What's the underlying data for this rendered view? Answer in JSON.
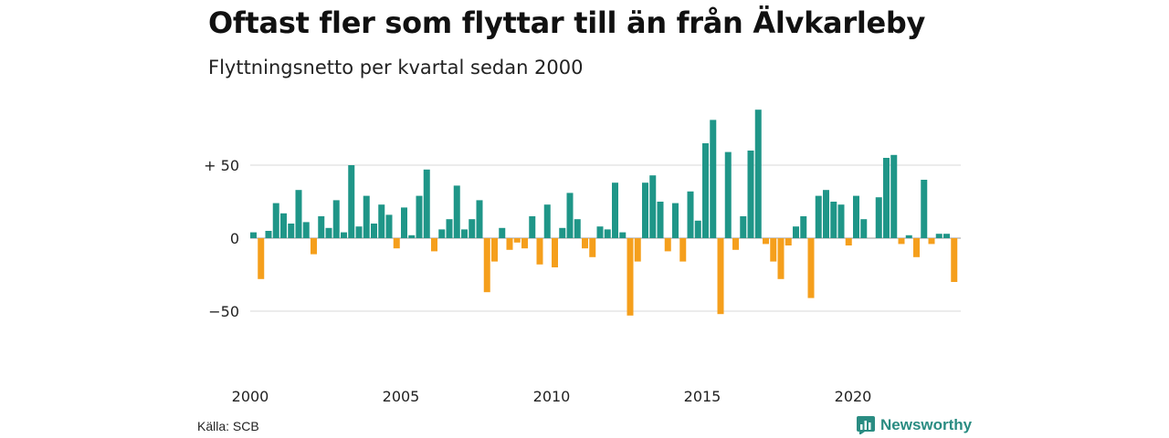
{
  "title": "Oftast fler som flyttar till än från Älvkarleby",
  "subtitle": "Flyttningsnetto per kvartal sedan 2000",
  "source": "Källa: SCB",
  "brand": "Newsworthy",
  "logo_icon": "newsworthy-chart-icon",
  "colors": {
    "positive": "#1f9688",
    "negative": "#f59f1c",
    "grid": "#d9d9d9",
    "brand": "#2a8c82"
  },
  "chart_data": {
    "type": "bar",
    "title": "Oftast fler som flyttar till än från Älvkarleby",
    "subtitle": "Flyttningsnetto per kvartal sedan 2000",
    "xlabel": "",
    "ylabel": "",
    "ylim": [
      -75,
      92
    ],
    "grid": true,
    "yticks": [
      50,
      0,
      -50
    ],
    "ytick_labels": [
      "+ 50",
      "0",
      "−50"
    ],
    "xticks": [
      "2000",
      "2005",
      "2010",
      "2015",
      "2020"
    ],
    "start_year": 2000,
    "periods_per_year": 4,
    "values": [
      4,
      -28,
      5,
      24,
      17,
      10,
      33,
      11,
      -11,
      15,
      7,
      26,
      4,
      50,
      8,
      29,
      10,
      23,
      16,
      -7,
      21,
      2,
      29,
      47,
      -9,
      6,
      13,
      36,
      6,
      13,
      26,
      -37,
      -16,
      7,
      -8,
      -3,
      -7,
      15,
      -18,
      23,
      -20,
      7,
      31,
      13,
      -7,
      -13,
      8,
      6,
      38,
      4,
      -53,
      -16,
      38,
      43,
      25,
      -9,
      24,
      -16,
      32,
      12,
      65,
      81,
      -52,
      59,
      -8,
      15,
      60,
      88,
      -4,
      -16,
      -28,
      -5,
      8,
      15,
      -41,
      29,
      33,
      25,
      23,
      -5,
      29,
      13,
      0,
      28,
      55,
      57,
      -4,
      2,
      -13,
      40,
      -4,
      3,
      3,
      -30
    ]
  }
}
